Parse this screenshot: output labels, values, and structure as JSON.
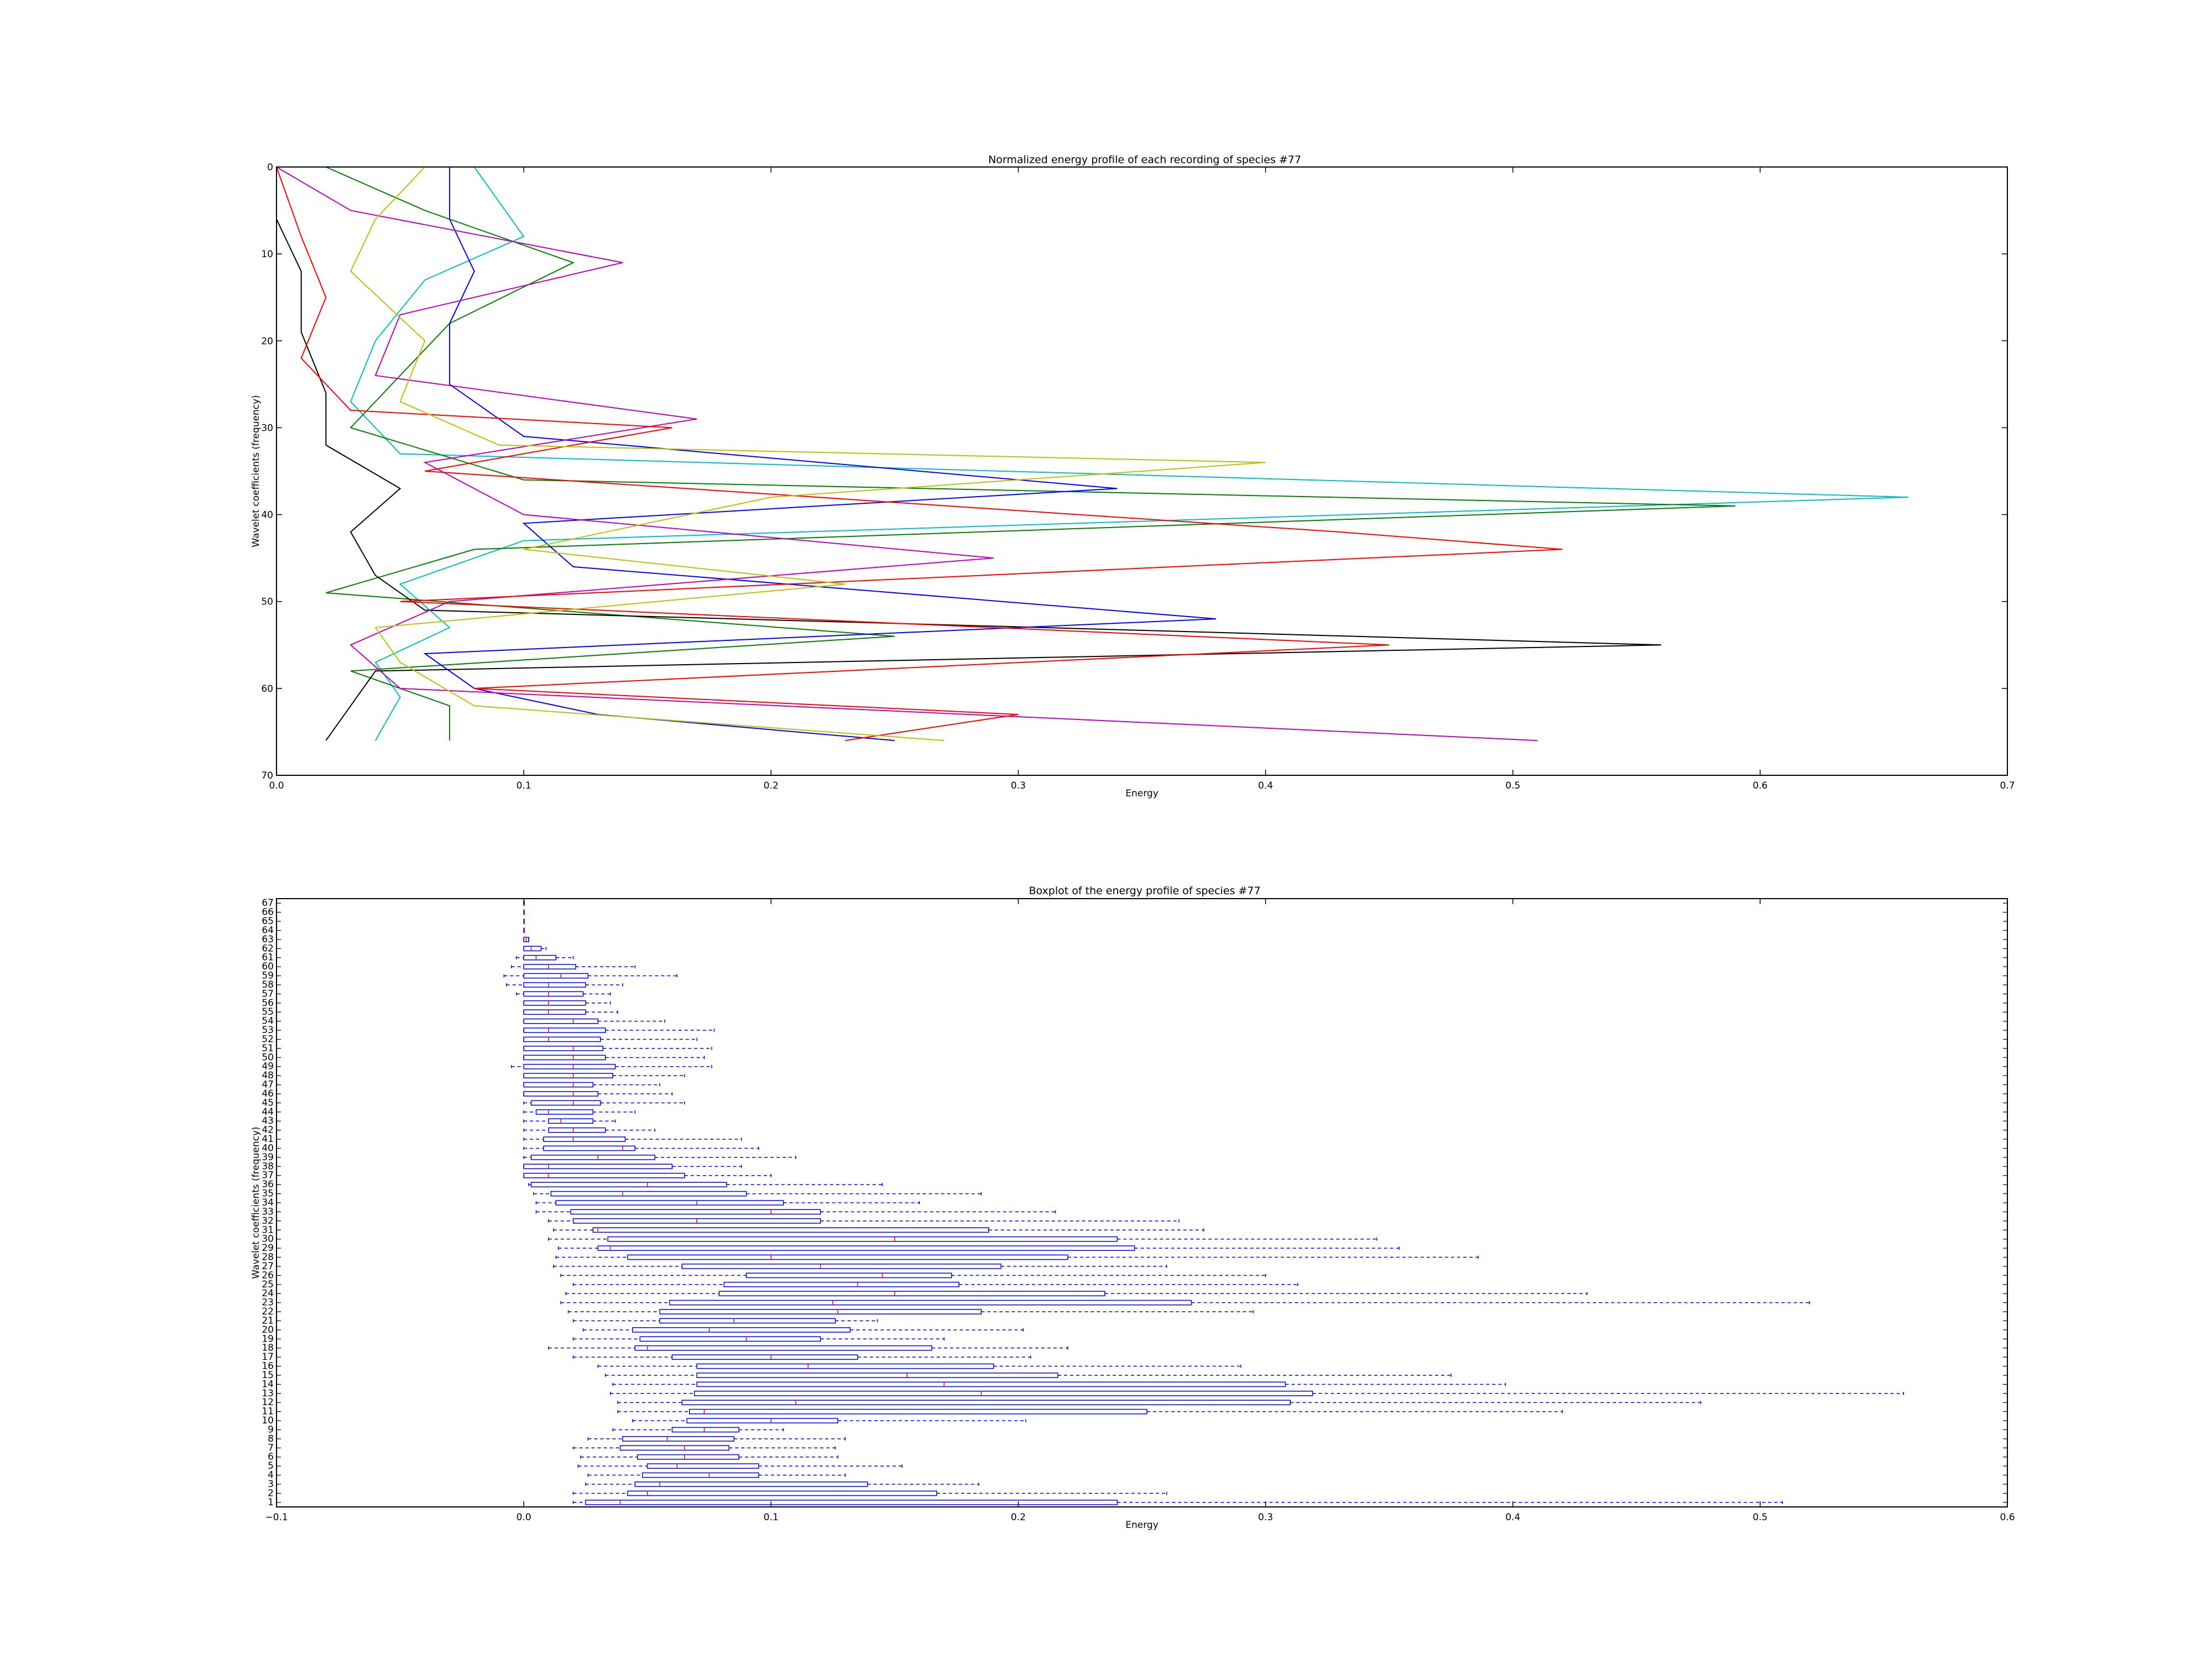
{
  "chart_data": [
    {
      "type": "line",
      "title": "Normalized energy profile of each recording of species #77",
      "xlabel": "Energy",
      "ylabel": "Wavelet coefficients (frequency)",
      "xlim": [
        0.0,
        0.7
      ],
      "ylim": [
        70,
        0
      ],
      "y_inverted": true,
      "xticks": [
        0.0,
        0.1,
        0.2,
        0.3,
        0.4,
        0.5,
        0.6,
        0.7
      ],
      "yticks": [
        0,
        10,
        20,
        30,
        40,
        50,
        60,
        70
      ],
      "grid": false,
      "series": [
        {
          "color": "#00bfbf",
          "y": [
            0,
            4,
            8,
            13,
            20,
            27,
            33,
            38,
            43,
            48,
            53,
            57,
            61,
            66
          ],
          "x": [
            0.08,
            0.09,
            0.1,
            0.06,
            0.04,
            0.03,
            0.05,
            0.66,
            0.1,
            0.05,
            0.07,
            0.04,
            0.05,
            0.04
          ]
        },
        {
          "color": "#007f00",
          "y": [
            0,
            5,
            11,
            18,
            24,
            30,
            36,
            39,
            44,
            49,
            54,
            58,
            62,
            66
          ],
          "x": [
            0.02,
            0.06,
            0.12,
            0.07,
            0.05,
            0.03,
            0.1,
            0.59,
            0.08,
            0.02,
            0.25,
            0.03,
            0.07,
            0.07
          ]
        },
        {
          "color": "#000000",
          "y": [
            0,
            6,
            12,
            19,
            26,
            32,
            37,
            42,
            47,
            51,
            55,
            58,
            62,
            66
          ],
          "x": [
            0.0,
            0.0,
            0.01,
            0.01,
            0.02,
            0.02,
            0.05,
            0.03,
            0.04,
            0.06,
            0.56,
            0.04,
            0.03,
            0.02
          ]
        },
        {
          "color": "#0000ff",
          "y": [
            0,
            6,
            12,
            18,
            25,
            31,
            37,
            41,
            46,
            52,
            56,
            60,
            63,
            66
          ],
          "x": [
            0.07,
            0.07,
            0.08,
            0.07,
            0.07,
            0.1,
            0.34,
            0.1,
            0.12,
            0.38,
            0.06,
            0.08,
            0.13,
            0.25
          ]
        },
        {
          "color": "#bf00bf",
          "y": [
            0,
            5,
            11,
            17,
            24,
            29,
            34,
            40,
            45,
            50,
            55,
            60,
            66
          ],
          "x": [
            0.0,
            0.03,
            0.14,
            0.05,
            0.04,
            0.17,
            0.06,
            0.1,
            0.29,
            0.07,
            0.03,
            0.05,
            0.51
          ]
        },
        {
          "color": "#ff0000",
          "y": [
            0,
            8,
            15,
            22,
            28,
            30,
            35,
            42,
            44,
            50,
            55,
            60,
            63,
            66
          ],
          "x": [
            0.0,
            0.01,
            0.02,
            0.01,
            0.03,
            0.16,
            0.06,
            0.43,
            0.52,
            0.05,
            0.45,
            0.08,
            0.3,
            0.23
          ]
        },
        {
          "color": "#bfbf00",
          "y": [
            0,
            6,
            12,
            20,
            27,
            32,
            34,
            38,
            44,
            48,
            53,
            57,
            62,
            66
          ],
          "x": [
            0.06,
            0.04,
            0.03,
            0.06,
            0.05,
            0.09,
            0.4,
            0.2,
            0.1,
            0.23,
            0.04,
            0.05,
            0.08,
            0.27
          ]
        }
      ]
    },
    {
      "type": "box",
      "orientation": "horizontal",
      "title": "Boxplot of the energy profile of species #77",
      "xlabel": "Energy",
      "ylabel": "Wavelet coefficients (frequency)",
      "xlim": [
        -0.1,
        0.6
      ],
      "xticks": [
        -0.1,
        0.0,
        0.1,
        0.2,
        0.3,
        0.4,
        0.5,
        0.6
      ],
      "categories": [
        1,
        2,
        3,
        4,
        5,
        6,
        7,
        8,
        9,
        10,
        11,
        12,
        13,
        14,
        15,
        16,
        17,
        18,
        19,
        20,
        21,
        22,
        23,
        24,
        25,
        26,
        27,
        28,
        29,
        30,
        31,
        32,
        33,
        34,
        35,
        36,
        37,
        38,
        39,
        40,
        41,
        42,
        43,
        44,
        45,
        46,
        47,
        48,
        49,
        50,
        51,
        52,
        53,
        54,
        55,
        56,
        57,
        58,
        59,
        60,
        61,
        62,
        63,
        64,
        65,
        66,
        67
      ],
      "color": "#0000ff",
      "median_color": "#ff0000",
      "boxes": [
        [
          0.02,
          0.025,
          0.039,
          0.24,
          0.509
        ],
        [
          0.02,
          0.042,
          0.05,
          0.167,
          0.26
        ],
        [
          0.025,
          0.045,
          0.055,
          0.139,
          0.184
        ],
        [
          0.026,
          0.048,
          0.075,
          0.095,
          0.13
        ],
        [
          0.022,
          0.05,
          0.062,
          0.095,
          0.153
        ],
        [
          0.023,
          0.046,
          0.065,
          0.087,
          0.127
        ],
        [
          0.02,
          0.039,
          0.065,
          0.083,
          0.126
        ],
        [
          0.026,
          0.04,
          0.058,
          0.085,
          0.13
        ],
        [
          0.036,
          0.06,
          0.073,
          0.087,
          0.105
        ],
        [
          0.044,
          0.066,
          0.1,
          0.127,
          0.203
        ],
        [
          0.038,
          0.067,
          0.073,
          0.252,
          0.42
        ],
        [
          0.038,
          0.064,
          0.11,
          0.31,
          0.476
        ],
        [
          0.035,
          0.069,
          0.185,
          0.319,
          0.558
        ],
        [
          0.036,
          0.07,
          0.17,
          0.308,
          0.397
        ],
        [
          0.033,
          0.07,
          0.155,
          0.216,
          0.375
        ],
        [
          0.03,
          0.07,
          0.115,
          0.19,
          0.29
        ],
        [
          0.02,
          0.06,
          0.1,
          0.135,
          0.205
        ],
        [
          0.01,
          0.045,
          0.05,
          0.165,
          0.22
        ],
        [
          0.02,
          0.047,
          0.09,
          0.12,
          0.17
        ],
        [
          0.024,
          0.044,
          0.075,
          0.132,
          0.202
        ],
        [
          0.02,
          0.055,
          0.085,
          0.126,
          0.143
        ],
        [
          0.018,
          0.055,
          0.127,
          0.185,
          0.295
        ],
        [
          0.015,
          0.059,
          0.125,
          0.27,
          0.52
        ],
        [
          0.017,
          0.079,
          0.15,
          0.235,
          0.43
        ],
        [
          0.02,
          0.081,
          0.135,
          0.176,
          0.313
        ],
        [
          0.015,
          0.09,
          0.145,
          0.173,
          0.3
        ],
        [
          0.012,
          0.064,
          0.12,
          0.193,
          0.26
        ],
        [
          0.013,
          0.042,
          0.1,
          0.22,
          0.386
        ],
        [
          0.014,
          0.03,
          0.035,
          0.247,
          0.354
        ],
        [
          0.01,
          0.034,
          0.15,
          0.24,
          0.345
        ],
        [
          0.012,
          0.028,
          0.03,
          0.188,
          0.275
        ],
        [
          0.01,
          0.02,
          0.07,
          0.12,
          0.265
        ],
        [
          0.005,
          0.019,
          0.1,
          0.12,
          0.215
        ],
        [
          0.005,
          0.013,
          0.07,
          0.105,
          0.16
        ],
        [
          0.004,
          0.011,
          0.04,
          0.09,
          0.185
        ],
        [
          0.002,
          0.003,
          0.05,
          0.082,
          0.145
        ],
        [
          0.0,
          0.0,
          0.01,
          0.065,
          0.1
        ],
        [
          0.0,
          0.0,
          0.01,
          0.06,
          0.088
        ],
        [
          0.0,
          0.003,
          0.03,
          0.053,
          0.11
        ],
        [
          0.0,
          0.008,
          0.04,
          0.045,
          0.095
        ],
        [
          0.0,
          0.008,
          0.02,
          0.041,
          0.088
        ],
        [
          0.0,
          0.01,
          0.02,
          0.033,
          0.053
        ],
        [
          0.0,
          0.01,
          0.015,
          0.028,
          0.037
        ],
        [
          0.0,
          0.005,
          0.01,
          0.028,
          0.045
        ],
        [
          0.0,
          0.003,
          0.02,
          0.031,
          0.065
        ],
        [
          0.0,
          0.0,
          0.02,
          0.03,
          0.06
        ],
        [
          0.0,
          0.0,
          0.02,
          0.028,
          0.055
        ],
        [
          0.0,
          0.0,
          0.02,
          0.036,
          0.065
        ],
        [
          -0.005,
          0.0,
          0.02,
          0.037,
          0.076
        ],
        [
          0.0,
          0.0,
          0.02,
          0.033,
          0.073
        ],
        [
          0.0,
          0.0,
          0.02,
          0.032,
          0.076
        ],
        [
          0.0,
          0.0,
          0.01,
          0.031,
          0.07
        ],
        [
          0.0,
          0.0,
          0.01,
          0.033,
          0.077
        ],
        [
          0.0,
          0.0,
          0.02,
          0.03,
          0.057
        ],
        [
          0.0,
          0.0,
          0.01,
          0.025,
          0.038
        ],
        [
          0.0,
          0.0,
          0.01,
          0.025,
          0.035
        ],
        [
          -0.003,
          0.0,
          0.01,
          0.024,
          0.035
        ],
        [
          -0.007,
          0.0,
          0.01,
          0.025,
          0.04
        ],
        [
          -0.008,
          0.0,
          0.015,
          0.026,
          0.062
        ],
        [
          -0.005,
          0.0,
          0.01,
          0.021,
          0.045
        ],
        [
          -0.003,
          0.0,
          0.005,
          0.013,
          0.02
        ],
        [
          0.0,
          0.0,
          0.003,
          0.007,
          0.009
        ],
        [
          0.0,
          0.0,
          0.001,
          0.002,
          0.002
        ],
        [
          0.0,
          0.0,
          0.0,
          0.0,
          0.0
        ],
        [
          0.0,
          0.0,
          0.0,
          0.0,
          0.0
        ],
        [
          0.0,
          0.0,
          0.0,
          0.0,
          0.0
        ],
        [
          0.0,
          0.0,
          0.0,
          0.0,
          0.0
        ]
      ]
    }
  ]
}
